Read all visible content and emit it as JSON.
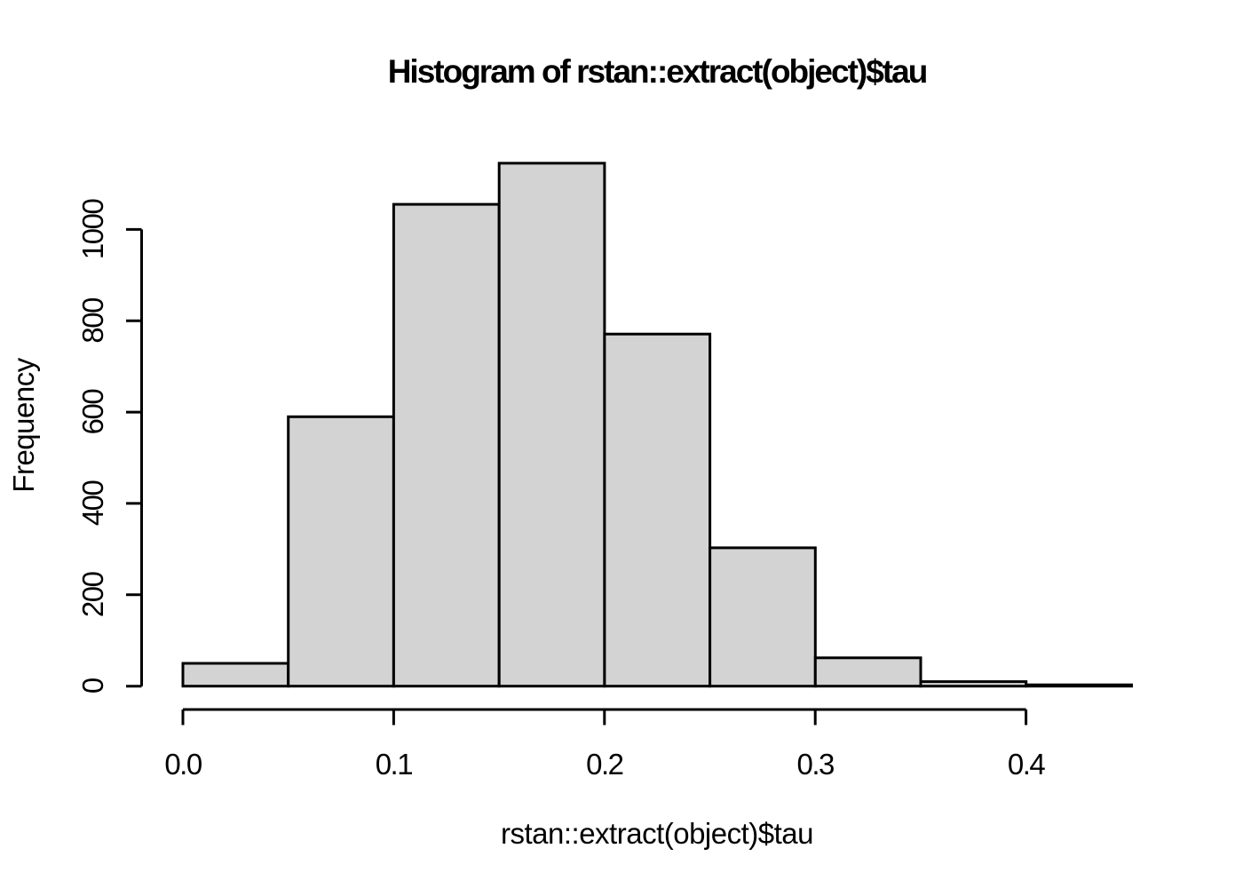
{
  "page": {
    "background": "#ffffff"
  },
  "chart_data": {
    "type": "bar",
    "subtype": "histogram",
    "title": "Histogram of rstan::extract(object)$tau",
    "xlabel": "rstan::extract(object)$tau",
    "ylabel": "Frequency",
    "bin_edges": [
      0.0,
      0.05,
      0.1,
      0.15,
      0.2,
      0.25,
      0.3,
      0.35,
      0.4,
      0.45
    ],
    "values": [
      50,
      590,
      1055,
      1145,
      771,
      303,
      62,
      10,
      3
    ],
    "x_ticks": [
      "0.0",
      "0.1",
      "0.2",
      "0.3",
      "0.4"
    ],
    "x_tick_values": [
      0.0,
      0.1,
      0.2,
      0.3,
      0.4
    ],
    "y_ticks": [
      "0",
      "200",
      "400",
      "600",
      "800",
      "1000"
    ],
    "y_tick_values": [
      0,
      200,
      400,
      600,
      800,
      1000
    ],
    "xlim": [
      0.0,
      0.45
    ],
    "ylim": [
      0,
      1150
    ],
    "grid": "off",
    "legend": "none",
    "bar_fill": "#d3d3d3",
    "bar_stroke": "#000000",
    "axis_color": "#000000",
    "text_color": "#000000"
  }
}
